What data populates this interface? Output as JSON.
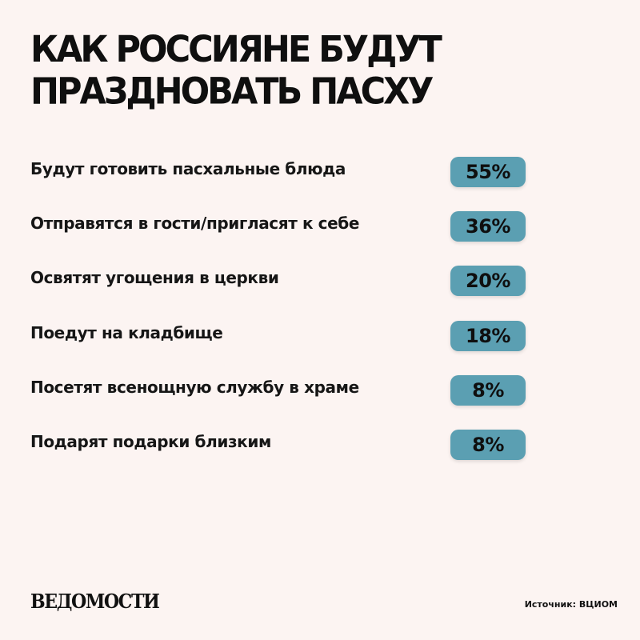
{
  "title_lines": [
    "КАК РОССИЯНЕ БУДУТ",
    "ПРАЗДНОВАТЬ ПАСХУ"
  ],
  "colors": {
    "background": "#fcf4f2",
    "pill": "#5b9fb2",
    "text": "#111111"
  },
  "chart_data": {
    "type": "table",
    "title": "КАК РОССИЯНЕ БУДУТ ПРАЗДНОВАТЬ ПАСХУ",
    "unit": "%",
    "categories": [
      "Будут готовить пасхальные блюда",
      "Отправятся в гости/пригласят к себе",
      "Освятят угощения в церкви",
      "Поедут на кладбище",
      "Посетят всенощную службу в храме",
      "Подарят подарки близким"
    ],
    "values": [
      55,
      36,
      20,
      18,
      8,
      8
    ],
    "value_labels": [
      "55%",
      "36%",
      "20%",
      "18%",
      "8%",
      "8%"
    ]
  },
  "footer": {
    "logo": "ВЕДОМОСТИ",
    "source": "Источник: ВЦИОМ"
  }
}
